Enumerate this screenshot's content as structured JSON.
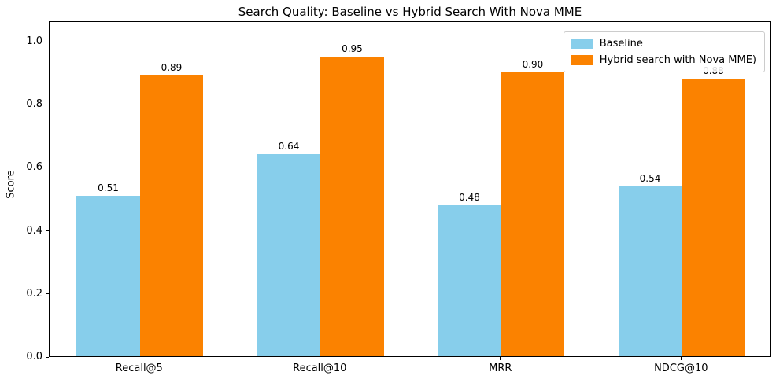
{
  "chart_data": {
    "type": "bar",
    "title": "Search Quality: Baseline vs Hybrid Search With Nova MME",
    "xlabel": "",
    "ylabel": "Score",
    "categories": [
      "Recall@5",
      "Recall@10",
      "MRR",
      "NDCG@10"
    ],
    "series": [
      {
        "name": "Baseline",
        "color": "#87CEEB",
        "values": [
          0.51,
          0.64,
          0.48,
          0.54
        ],
        "value_labels": [
          "0.51",
          "0.64",
          "0.48",
          "0.54"
        ]
      },
      {
        "name": "Hybrid search with Nova MME)",
        "color": "#FB8200",
        "values": [
          0.89,
          0.95,
          0.9,
          0.88
        ],
        "value_labels": [
          "0.89",
          "0.95",
          "0.90",
          "0.88"
        ]
      }
    ],
    "yticks": [
      0.0,
      0.2,
      0.4,
      0.6,
      0.8,
      1.0
    ],
    "ytick_labels": [
      "0.0",
      "0.2",
      "0.4",
      "0.6",
      "0.8",
      "1.0"
    ],
    "ylim": [
      0,
      1.065
    ],
    "grid": false,
    "legend_position": "upper right",
    "bar_width_fraction": 0.35
  }
}
